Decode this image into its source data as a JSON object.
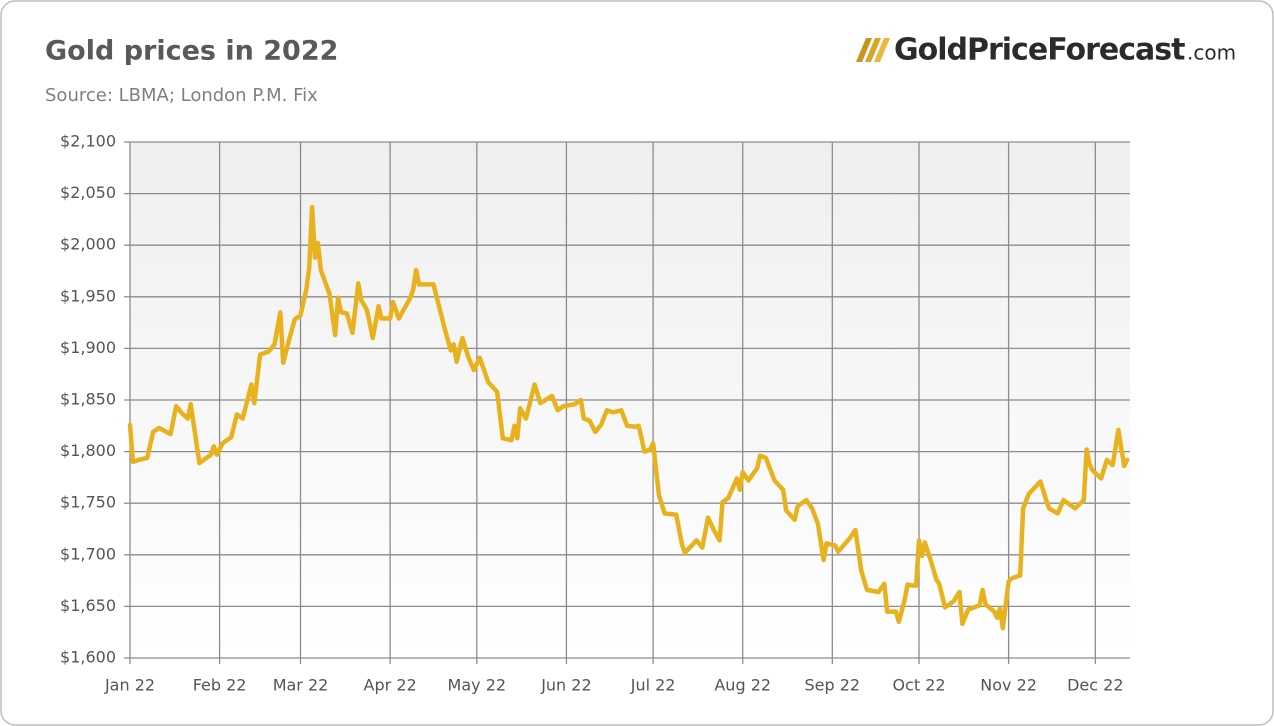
{
  "chart_data": {
    "type": "line",
    "title": "Gold prices in 2022",
    "subtitle": "Source: LBMA; London P.M. Fix",
    "logo": "GoldPriceForecast",
    "logo_suffix": ".com",
    "color": "#e8b21f",
    "grid": true,
    "xlim": [
      0,
      346
    ],
    "xticks": [
      {
        "value": 0,
        "label": "Jan 22"
      },
      {
        "value": 31,
        "label": "Feb 22"
      },
      {
        "value": 59,
        "label": "Mar 22"
      },
      {
        "value": 90,
        "label": "Apr 22"
      },
      {
        "value": 120,
        "label": "May 22"
      },
      {
        "value": 151,
        "label": "Jun 22"
      },
      {
        "value": 181,
        "label": "Jul 22"
      },
      {
        "value": 212,
        "label": "Aug 22"
      },
      {
        "value": 243,
        "label": "Sep 22"
      },
      {
        "value": 273,
        "label": "Oct 22"
      },
      {
        "value": 304,
        "label": "Nov 22"
      },
      {
        "value": 334,
        "label": "Dec 22"
      }
    ],
    "ylim": [
      1600,
      2100
    ],
    "yticks": [
      {
        "value": 1600,
        "label": "$1,600"
      },
      {
        "value": 1650,
        "label": "$1,650"
      },
      {
        "value": 1700,
        "label": "$1,700"
      },
      {
        "value": 1750,
        "label": "$1,750"
      },
      {
        "value": 1800,
        "label": "$1,800"
      },
      {
        "value": 1850,
        "label": "$1,850"
      },
      {
        "value": 1900,
        "label": "$1,900"
      },
      {
        "value": 1950,
        "label": "$1,950"
      },
      {
        "value": 2000,
        "label": "$2,000"
      },
      {
        "value": 2050,
        "label": "$2,050"
      },
      {
        "value": 2100,
        "label": "$2,100"
      }
    ],
    "x": [
      0,
      1,
      3,
      6,
      8,
      10,
      14,
      16,
      18,
      20,
      21,
      24,
      28,
      29,
      30,
      32,
      35,
      37,
      39,
      42,
      43,
      45,
      48,
      50,
      52,
      53,
      55,
      57,
      59,
      61,
      62,
      63,
      64,
      65,
      66,
      69,
      71,
      72,
      73,
      75,
      77,
      79,
      80,
      82,
      84,
      86,
      87,
      90,
      91,
      93,
      97,
      98,
      99,
      100,
      105,
      109,
      111,
      112,
      113,
      115,
      117,
      119,
      121,
      124,
      127,
      129,
      132,
      133,
      134,
      135,
      137,
      140,
      142,
      146,
      148,
      150,
      154,
      156,
      157,
      159,
      161,
      163,
      165,
      167,
      170,
      172,
      175,
      176,
      178,
      180,
      181,
      183,
      185,
      189,
      191,
      192,
      196,
      198,
      200,
      202,
      204,
      205,
      207,
      210,
      211,
      212,
      214,
      217,
      218,
      220,
      223,
      226,
      227,
      230,
      231,
      234,
      236,
      238,
      240,
      241,
      244,
      245,
      249,
      251,
      253,
      255,
      259,
      261,
      262,
      265,
      266,
      268,
      269,
      272,
      273,
      274,
      275,
      277,
      279,
      280,
      282,
      285,
      287,
      288,
      290,
      294,
      295,
      296,
      299,
      300,
      301,
      302,
      304,
      305,
      308,
      309,
      311,
      315,
      317,
      318,
      321,
      323,
      325,
      327,
      330,
      331,
      332,
      333,
      336,
      338,
      340,
      342,
      343,
      344,
      345
    ],
    "values": [
      1826,
      1790,
      1792,
      1794,
      1819,
      1823,
      1817,
      1844,
      1837,
      1832,
      1846,
      1789,
      1797,
      1805,
      1797,
      1808,
      1814,
      1836,
      1832,
      1865,
      1847,
      1894,
      1897,
      1904,
      1935,
      1886,
      1908,
      1928,
      1932,
      1957,
      1978,
      2037,
      1988,
      2002,
      1976,
      1953,
      1913,
      1949,
      1935,
      1934,
      1915,
      1963,
      1947,
      1937,
      1910,
      1941,
      1929,
      1929,
      1945,
      1929,
      1949,
      1957,
      1976,
      1962,
      1962,
      1918,
      1898,
      1904,
      1887,
      1910,
      1892,
      1879,
      1891,
      1867,
      1858,
      1813,
      1811,
      1825,
      1813,
      1842,
      1832,
      1865,
      1847,
      1854,
      1840,
      1844,
      1846,
      1850,
      1832,
      1830,
      1819,
      1826,
      1840,
      1838,
      1840,
      1825,
      1824,
      1825,
      1800,
      1802,
      1808,
      1758,
      1740,
      1739,
      1710,
      1702,
      1714,
      1707,
      1736,
      1724,
      1714,
      1751,
      1755,
      1774,
      1763,
      1780,
      1772,
      1784,
      1796,
      1794,
      1772,
      1763,
      1743,
      1734,
      1747,
      1753,
      1745,
      1730,
      1695,
      1711,
      1709,
      1703,
      1716,
      1724,
      1685,
      1666,
      1664,
      1672,
      1645,
      1645,
      1635,
      1656,
      1671,
      1670,
      1714,
      1699,
      1712,
      1695,
      1676,
      1672,
      1649,
      1655,
      1664,
      1633,
      1647,
      1651,
      1666,
      1652,
      1645,
      1639,
      1648,
      1629,
      1674,
      1677,
      1680,
      1745,
      1759,
      1771,
      1753,
      1745,
      1740,
      1753,
      1749,
      1745,
      1753,
      1802,
      1788,
      1782,
      1774,
      1792,
      1787,
      1821,
      1803,
      1786,
      1792
    ]
  }
}
